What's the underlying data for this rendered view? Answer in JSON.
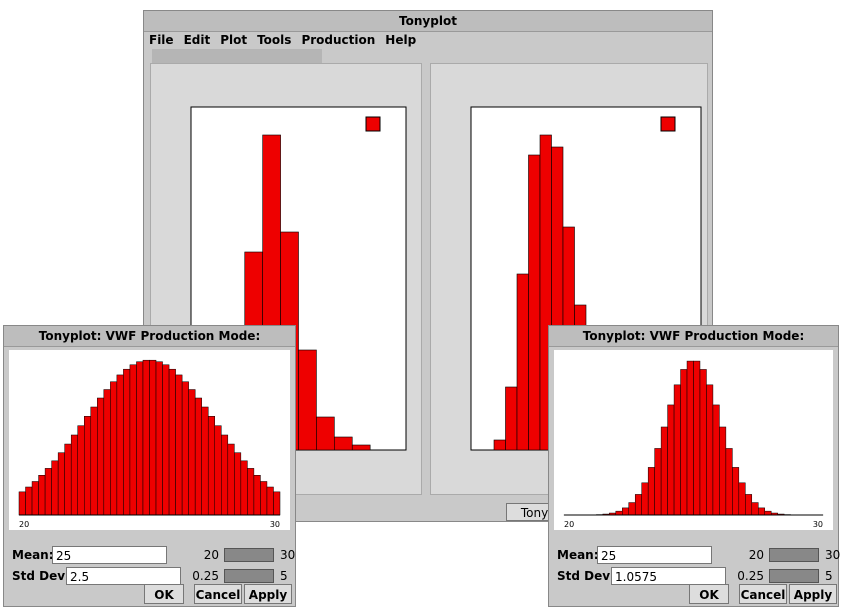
{
  "main_window": {
    "title": "Tonyplot",
    "menu": [
      "File",
      "Edit",
      "Plot",
      "Tools",
      "Production",
      "Help"
    ],
    "status": "Tonyplot",
    "plots": [
      {
        "type": "bar",
        "values": [
          0,
          0,
          0,
          198,
          315,
          218,
          100,
          33,
          13,
          5,
          0,
          0
        ],
        "ylim": [
          0,
          343
        ],
        "color": "#ee0000"
      },
      {
        "type": "bar",
        "values": [
          0,
          0,
          10,
          63,
          176,
          295,
          315,
          303,
          223,
          145,
          60,
          20,
          0,
          0,
          0,
          0,
          0,
          0,
          0,
          0
        ],
        "ylim": [
          0,
          343
        ],
        "color": "#ee0000"
      }
    ]
  },
  "dialogs": [
    {
      "title": "Tonyplot: VWF Production Mode: Distribution",
      "xlim": [
        20,
        30
      ],
      "mean_label": "Mean:",
      "mean": 25,
      "mean_range": [
        20,
        30
      ],
      "std_label": "Std Dev:",
      "std": 2.5,
      "std_range": [
        0.25,
        5
      ],
      "buttons": [
        "OK",
        "Cancel",
        "Apply"
      ]
    },
    {
      "title": "Tonyplot: VWF Production Mode: Distribution",
      "xlim": [
        20,
        30
      ],
      "mean_label": "Mean:",
      "mean": 25,
      "mean_range": [
        20,
        30
      ],
      "std_label": "Std Dev:",
      "std": 1.0575,
      "std_range": [
        0.25,
        5
      ],
      "buttons": [
        "OK",
        "Cancel",
        "Apply"
      ]
    }
  ]
}
